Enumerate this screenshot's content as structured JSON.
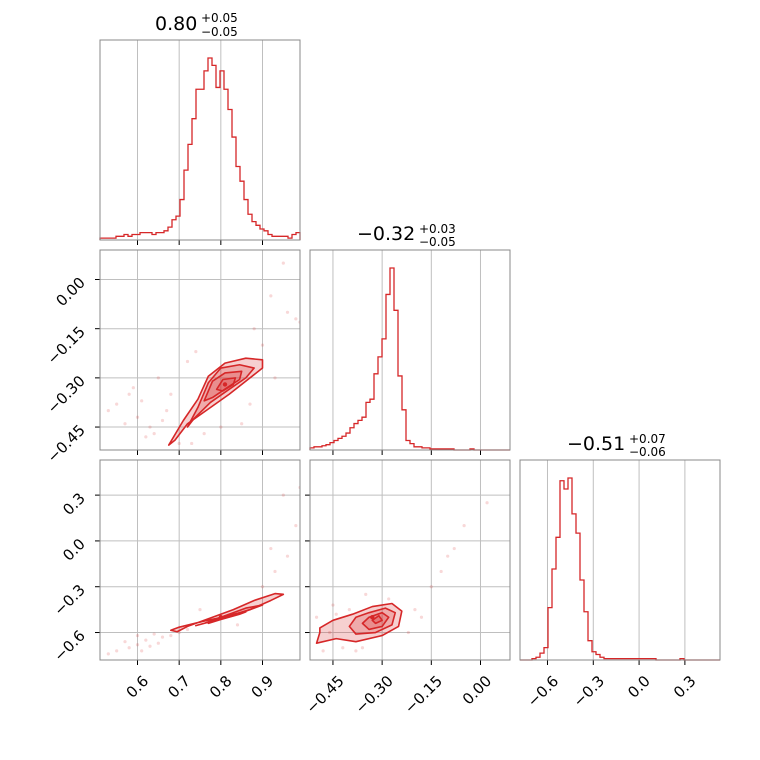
{
  "style": {
    "color": "#d62728",
    "grid_color": "#bfbfbf",
    "frame_color": "#888888"
  },
  "chart_data": {
    "type": "corner",
    "parameters": 3,
    "titles": [
      {
        "main": "0.80",
        "plus": "+0.05",
        "minus": "−0.05"
      },
      {
        "main": "−0.32",
        "plus": "+0.03",
        "minus": "−0.05"
      },
      {
        "main": "−0.51",
        "plus": "+0.07",
        "minus": "−0.06"
      }
    ],
    "ranges": [
      [
        0.51,
        0.99
      ],
      [
        -0.52,
        0.09
      ],
      [
        -0.78,
        0.53
      ]
    ],
    "ticks": [
      {
        "values": [
          0.6,
          0.7,
          0.8,
          0.9
        ],
        "labels": [
          "0.6",
          "0.7",
          "0.8",
          "0.9"
        ]
      },
      {
        "values": [
          -0.45,
          -0.3,
          -0.15,
          0.0
        ],
        "labels": [
          "−0.45",
          "−0.30",
          "−0.15",
          "0.00"
        ]
      },
      {
        "values": [
          -0.6,
          -0.3,
          0.0,
          0.3
        ],
        "labels": [
          "−0.6",
          "−0.3",
          "0.0",
          "0.3"
        ]
      }
    ],
    "histograms": [
      {
        "bin_edges_range": [
          0.51,
          0.99
        ],
        "counts": [
          1,
          1,
          1,
          1,
          2,
          2,
          3,
          2,
          3,
          3,
          4,
          4,
          4,
          3,
          4,
          4,
          5,
          7,
          11,
          13,
          22,
          38,
          52,
          66,
          82,
          82,
          92,
          99,
          95,
          83,
          92,
          82,
          71,
          56,
          40,
          32,
          22,
          14,
          10,
          8,
          6,
          5,
          3,
          2,
          2,
          2,
          2,
          1,
          3,
          4
        ]
      },
      {
        "bin_edges_range": [
          -0.52,
          0.09
        ],
        "counts": [
          2,
          3,
          3,
          4,
          5,
          7,
          9,
          11,
          13,
          16,
          21,
          25,
          28,
          31,
          45,
          48,
          72,
          88,
          105,
          147,
          172,
          132,
          70,
          38,
          9,
          6,
          3,
          3,
          2,
          2,
          1,
          1,
          1,
          1,
          1,
          1,
          0,
          0,
          0,
          0,
          1,
          0,
          0,
          0,
          0,
          0,
          0,
          0,
          0,
          0
        ]
      },
      {
        "bin_edges_range": [
          -0.78,
          0.53
        ],
        "counts": [
          0,
          0,
          0,
          1,
          2,
          5,
          9,
          38,
          66,
          89,
          130,
          124,
          132,
          106,
          92,
          58,
          35,
          14,
          6,
          4,
          2,
          1,
          1,
          1,
          1,
          1,
          1,
          1,
          1,
          1,
          1,
          1,
          1,
          1,
          0,
          0,
          0,
          0,
          0,
          0,
          1,
          0,
          0,
          0,
          0,
          0,
          0,
          0,
          0,
          0
        ]
      }
    ],
    "pairs": [
      {
        "x_param": 0,
        "y_param": 1,
        "center": [
          0.81,
          -0.32
        ],
        "levels": [
          [
            [
              0.675,
              -0.505
            ],
            [
              0.71,
              -0.43
            ],
            [
              0.745,
              -0.365
            ],
            [
              0.77,
              -0.295
            ],
            [
              0.81,
              -0.255
            ],
            [
              0.86,
              -0.24
            ],
            [
              0.9,
              -0.245
            ],
            [
              0.9,
              -0.27
            ],
            [
              0.865,
              -0.305
            ],
            [
              0.82,
              -0.35
            ],
            [
              0.77,
              -0.395
            ],
            [
              0.72,
              -0.44
            ],
            [
              0.69,
              -0.49
            ]
          ],
          [
            [
              0.72,
              -0.45
            ],
            [
              0.745,
              -0.39
            ],
            [
              0.77,
              -0.315
            ],
            [
              0.8,
              -0.27
            ],
            [
              0.845,
              -0.26
            ],
            [
              0.88,
              -0.27
            ],
            [
              0.86,
              -0.3
            ],
            [
              0.82,
              -0.335
            ],
            [
              0.775,
              -0.375
            ],
            [
              0.735,
              -0.425
            ]
          ],
          [
            [
              0.76,
              -0.37
            ],
            [
              0.78,
              -0.31
            ],
            [
              0.81,
              -0.285
            ],
            [
              0.85,
              -0.28
            ],
            [
              0.845,
              -0.305
            ],
            [
              0.815,
              -0.33
            ],
            [
              0.78,
              -0.36
            ]
          ],
          [
            [
              0.79,
              -0.335
            ],
            [
              0.805,
              -0.305
            ],
            [
              0.835,
              -0.3
            ],
            [
              0.83,
              -0.32
            ],
            [
              0.805,
              -0.34
            ]
          ]
        ],
        "points": [
          [
            0.6,
            -0.42
          ],
          [
            0.58,
            -0.35
          ],
          [
            0.62,
            -0.48
          ],
          [
            0.65,
            -0.3
          ],
          [
            0.7,
            -0.5
          ],
          [
            0.55,
            -0.38
          ],
          [
            0.67,
            -0.4
          ],
          [
            0.72,
            -0.25
          ],
          [
            0.88,
            -0.15
          ],
          [
            0.92,
            -0.05
          ],
          [
            0.95,
            0.05
          ],
          [
            0.98,
            -0.12
          ],
          [
            0.85,
            -0.44
          ],
          [
            0.76,
            -0.47
          ],
          [
            0.63,
            -0.45
          ],
          [
            0.68,
            -0.35
          ],
          [
            0.57,
            -0.44
          ],
          [
            0.9,
            -0.2
          ],
          [
            0.93,
            -0.3
          ],
          [
            0.61,
            -0.37
          ],
          [
            0.66,
            -0.43
          ],
          [
            0.73,
            -0.5
          ],
          [
            0.8,
            -0.45
          ],
          [
            0.87,
            -0.38
          ],
          [
            0.53,
            -0.4
          ],
          [
            0.59,
            -0.33
          ],
          [
            0.64,
            -0.47
          ],
          [
            0.74,
            -0.22
          ],
          [
            0.96,
            -0.1
          ],
          [
            0.99,
            -0.13
          ]
        ]
      },
      {
        "x_param": 0,
        "y_param": 2,
        "center": [
          0.8,
          -0.5
        ],
        "levels": [
          [
            [
              0.68,
              -0.585
            ],
            [
              0.7,
              -0.565
            ],
            [
              0.76,
              -0.525
            ],
            [
              0.82,
              -0.49
            ],
            [
              0.87,
              -0.45
            ],
            [
              0.92,
              -0.39
            ],
            [
              0.95,
              -0.35
            ],
            [
              0.93,
              -0.345
            ],
            [
              0.88,
              -0.39
            ],
            [
              0.83,
              -0.45
            ],
            [
              0.78,
              -0.5
            ],
            [
              0.72,
              -0.56
            ],
            [
              0.695,
              -0.595
            ]
          ],
          [
            [
              0.74,
              -0.555
            ],
            [
              0.78,
              -0.525
            ],
            [
              0.83,
              -0.49
            ],
            [
              0.88,
              -0.44
            ],
            [
              0.9,
              -0.42
            ],
            [
              0.86,
              -0.44
            ],
            [
              0.8,
              -0.5
            ],
            [
              0.76,
              -0.54
            ]
          ],
          [
            [
              0.77,
              -0.54
            ],
            [
              0.8,
              -0.515
            ],
            [
              0.845,
              -0.48
            ],
            [
              0.86,
              -0.465
            ],
            [
              0.83,
              -0.48
            ],
            [
              0.79,
              -0.52
            ]
          ]
        ],
        "points": [
          [
            0.55,
            -0.72
          ],
          [
            0.6,
            -0.68
          ],
          [
            0.62,
            -0.65
          ],
          [
            0.66,
            -0.63
          ],
          [
            0.58,
            -0.7
          ],
          [
            0.64,
            -0.61
          ],
          [
            0.7,
            -0.6
          ],
          [
            0.53,
            -0.74
          ],
          [
            0.57,
            -0.66
          ],
          [
            0.61,
            -0.72
          ],
          [
            0.68,
            -0.62
          ],
          [
            0.72,
            -0.58
          ],
          [
            0.9,
            -0.3
          ],
          [
            0.93,
            -0.2
          ],
          [
            0.96,
            -0.1
          ],
          [
            0.98,
            0.1
          ],
          [
            0.99,
            0.35
          ],
          [
            0.95,
            0.3
          ],
          [
            0.92,
            -0.05
          ],
          [
            0.75,
            -0.45
          ],
          [
            0.84,
            -0.55
          ],
          [
            0.65,
            -0.67
          ],
          [
            0.6,
            -0.62
          ],
          [
            0.63,
            -0.69
          ]
        ]
      },
      {
        "x_param": 1,
        "y_param": 2,
        "center": [
          -0.33,
          -0.5
        ],
        "levels": [
          [
            [
              -0.49,
              -0.6
            ],
            [
              -0.5,
              -0.67
            ],
            [
              -0.44,
              -0.64
            ],
            [
              -0.38,
              -0.66
            ],
            [
              -0.3,
              -0.62
            ],
            [
              -0.25,
              -0.56
            ],
            [
              -0.24,
              -0.46
            ],
            [
              -0.27,
              -0.41
            ],
            [
              -0.33,
              -0.43
            ],
            [
              -0.39,
              -0.48
            ],
            [
              -0.45,
              -0.52
            ],
            [
              -0.49,
              -0.57
            ]
          ],
          [
            [
              -0.4,
              -0.56
            ],
            [
              -0.38,
              -0.61
            ],
            [
              -0.32,
              -0.6
            ],
            [
              -0.27,
              -0.55
            ],
            [
              -0.26,
              -0.47
            ],
            [
              -0.29,
              -0.44
            ],
            [
              -0.34,
              -0.47
            ],
            [
              -0.38,
              -0.5
            ]
          ],
          [
            [
              -0.36,
              -0.54
            ],
            [
              -0.34,
              -0.58
            ],
            [
              -0.3,
              -0.56
            ],
            [
              -0.28,
              -0.5
            ],
            [
              -0.3,
              -0.47
            ],
            [
              -0.34,
              -0.5
            ]
          ],
          [
            [
              -0.33,
              -0.52
            ],
            [
              -0.32,
              -0.54
            ],
            [
              -0.3,
              -0.52
            ],
            [
              -0.31,
              -0.49
            ]
          ]
        ],
        "points": [
          [
            -0.48,
            -0.72
          ],
          [
            -0.45,
            -0.42
          ],
          [
            -0.5,
            -0.5
          ],
          [
            -0.4,
            -0.45
          ],
          [
            -0.35,
            -0.35
          ],
          [
            -0.2,
            -0.45
          ],
          [
            -0.15,
            -0.3
          ],
          [
            -0.1,
            -0.1
          ],
          [
            -0.05,
            0.1
          ],
          [
            -0.12,
            -0.2
          ],
          [
            -0.42,
            -0.7
          ],
          [
            -0.46,
            -0.6
          ],
          [
            -0.38,
            -0.72
          ],
          [
            -0.28,
            -0.38
          ],
          [
            -0.22,
            -0.6
          ],
          [
            -0.18,
            -0.5
          ],
          [
            -0.08,
            -0.05
          ],
          [
            0.02,
            0.25
          ],
          [
            -0.44,
            -0.48
          ],
          [
            -0.36,
            -0.7
          ]
        ]
      }
    ]
  }
}
